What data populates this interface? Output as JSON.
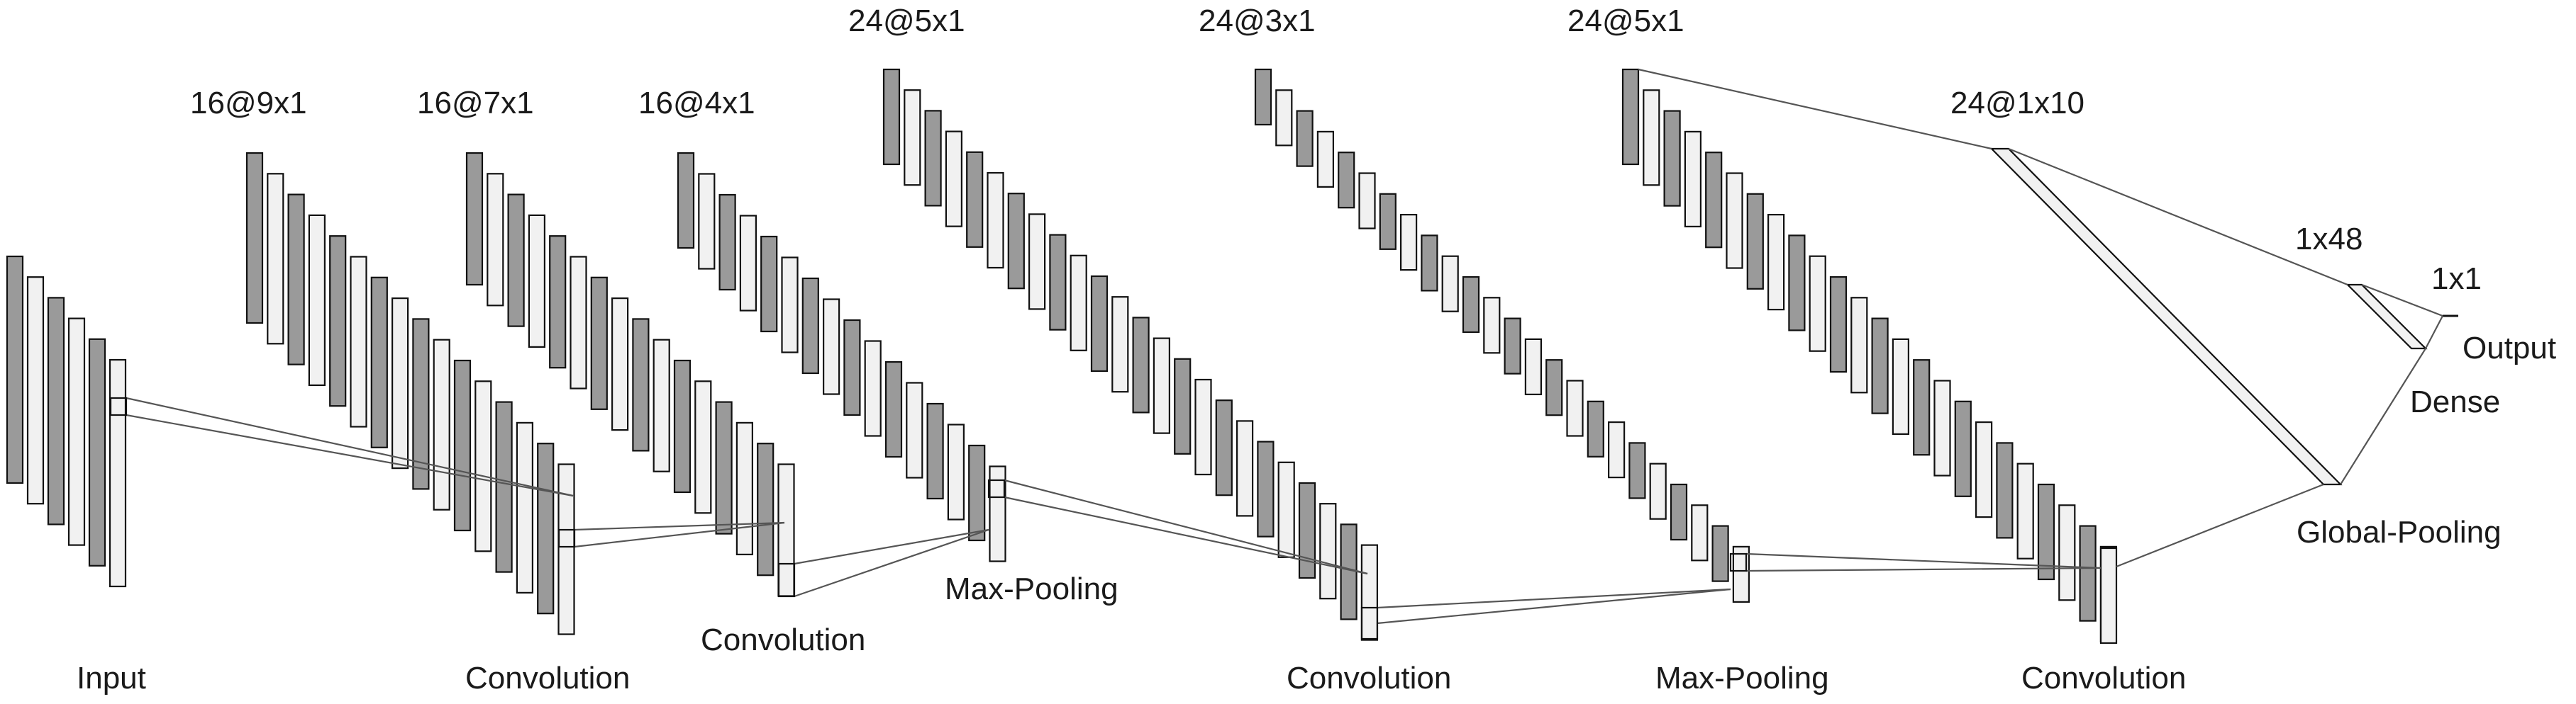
{
  "colors": {
    "dark": "#9a9a9a",
    "light": "#f1f1f1",
    "stroke": "#111111",
    "connector": "#555555"
  },
  "layers": [
    {
      "id": "input",
      "dim": "",
      "caption": "Input"
    },
    {
      "id": "conv1",
      "dim": "16@9x1",
      "caption": ""
    },
    {
      "id": "conv2",
      "dim": "16@7x1",
      "caption": "Convolution"
    },
    {
      "id": "conv3",
      "dim": "16@4x1",
      "caption": "Convolution"
    },
    {
      "id": "pool1",
      "dim": "24@5x1",
      "caption": "Max-Pooling"
    },
    {
      "id": "conv4",
      "dim": "24@3x1",
      "caption": "Convolution"
    },
    {
      "id": "pool2",
      "dim": "24@5x1",
      "caption": "Max-Pooling"
    },
    {
      "id": "conv5",
      "dim": "24@1x10",
      "caption": "Convolution"
    },
    {
      "id": "gpool",
      "dim": "",
      "caption": "Global-Pooling"
    },
    {
      "id": "dense",
      "dim": "1x48",
      "caption": "Dense"
    },
    {
      "id": "output",
      "dim": "1x1",
      "caption": "Output"
    }
  ]
}
